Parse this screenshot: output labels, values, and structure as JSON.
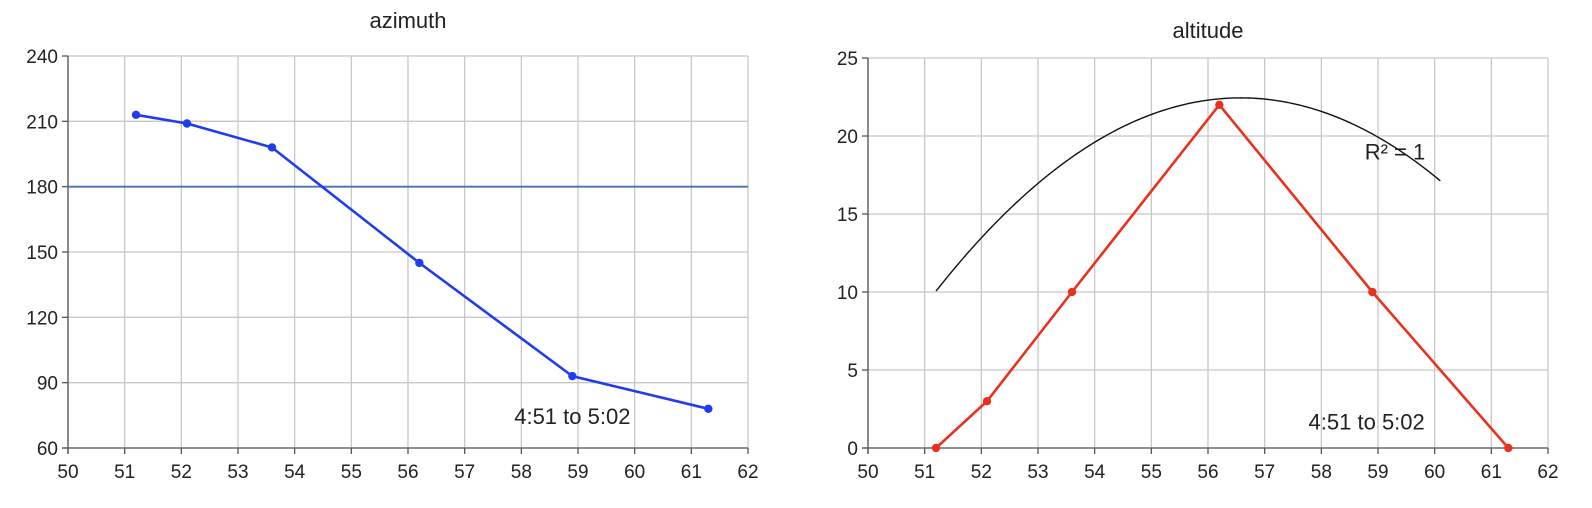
{
  "chart_data": [
    {
      "type": "line",
      "title": "azimuth",
      "xlim": [
        50,
        62
      ],
      "ylim": [
        60,
        240
      ],
      "xticks": [
        50,
        51,
        52,
        53,
        54,
        55,
        56,
        57,
        58,
        59,
        60,
        61,
        62
      ],
      "yticks": [
        60,
        90,
        120,
        150,
        180,
        210,
        240
      ],
      "grid": true,
      "series": [
        {
          "color": "#1f3cf0",
          "x": [
            51.2,
            52.1,
            53.6,
            56.2,
            58.9,
            61.3
          ],
          "y": [
            213,
            209,
            198,
            145,
            93,
            78
          ]
        }
      ],
      "reference_lines": [
        {
          "orientation": "horizontal",
          "y": 180,
          "color": "#4a6fb5"
        }
      ],
      "annotations": [
        {
          "text": "4:51 to 5:02",
          "x": 58.9,
          "y": 71
        }
      ]
    },
    {
      "type": "line",
      "title": "altitude",
      "xlim": [
        50,
        62
      ],
      "ylim": [
        0,
        25
      ],
      "xticks": [
        50,
        51,
        52,
        53,
        54,
        55,
        56,
        57,
        58,
        59,
        60,
        61,
        62
      ],
      "yticks": [
        0,
        5,
        10,
        15,
        20,
        25
      ],
      "grid": true,
      "series": [
        {
          "color": "#e8321e",
          "x": [
            51.2,
            52.1,
            53.6,
            56.2,
            58.9,
            61.3
          ],
          "y": [
            0,
            3,
            10,
            22,
            10,
            0
          ]
        }
      ],
      "trendline": {
        "kind": "polynomial",
        "color": "#111111",
        "coefficients": [
          -0.4285,
          48.4862,
          -1349.15
        ],
        "x_range": [
          51.2,
          60.1
        ]
      },
      "annotations": [
        {
          "text": "R² = 1",
          "x": 59.3,
          "y": 18.5
        },
        {
          "text": "4:51 to 5:02",
          "x": 58.8,
          "y": 1.2
        }
      ]
    }
  ]
}
